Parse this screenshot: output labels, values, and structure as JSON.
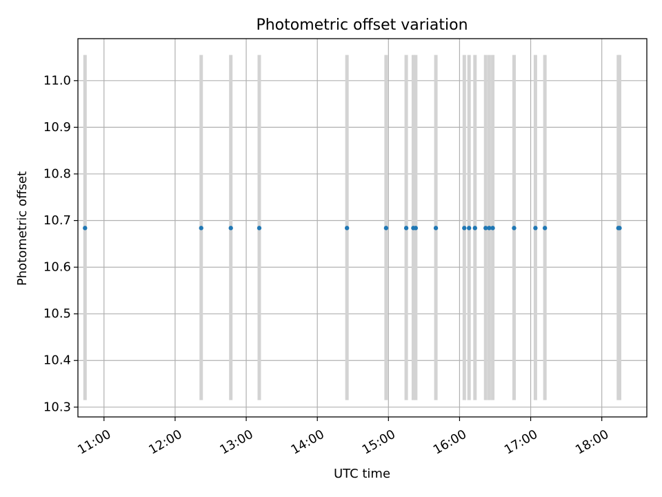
{
  "chart_data": {
    "type": "scatter",
    "title": "Photometric offset variation",
    "xlabel": "UTC time",
    "ylabel": "Photometric offset",
    "x_tick_labels": [
      "11:00",
      "12:00",
      "13:00",
      "14:00",
      "15:00",
      "16:00",
      "17:00",
      "18:00"
    ],
    "y_tick_labels": [
      "10.3",
      "10.4",
      "10.5",
      "10.6",
      "10.7",
      "10.8",
      "10.9",
      "11.0"
    ],
    "xlim": [
      "10:38",
      "18:38"
    ],
    "ylim": [
      10.279,
      11.09
    ],
    "grid": true,
    "series": [
      {
        "type": "points",
        "color": "#1f77b4",
        "x": [
          "10:44",
          "12:22",
          "12:47",
          "13:11",
          "14:25",
          "14:58",
          "15:15",
          "15:21",
          "15:23",
          "15:40",
          "16:04",
          "16:08",
          "16:13",
          "16:22",
          "16:25",
          "16:28",
          "16:46",
          "17:04",
          "17:12",
          "18:14",
          "18:15"
        ],
        "y": [
          10.684,
          10.684,
          10.684,
          10.684,
          10.684,
          10.684,
          10.684,
          10.684,
          10.684,
          10.684,
          10.684,
          10.684,
          10.684,
          10.684,
          10.684,
          10.684,
          10.684,
          10.684,
          10.684,
          10.684,
          10.684
        ]
      },
      {
        "type": "vertical-bands",
        "color": "#d3d3d3",
        "x": [
          "10:44",
          "12:22",
          "12:47",
          "13:11",
          "14:25",
          "14:58",
          "15:15",
          "15:21",
          "15:23",
          "15:40",
          "16:04",
          "16:08",
          "16:13",
          "16:22",
          "16:25",
          "16:28",
          "16:46",
          "17:04",
          "17:12",
          "18:14",
          "18:15"
        ],
        "y_range": [
          10.315,
          11.055
        ]
      }
    ]
  }
}
